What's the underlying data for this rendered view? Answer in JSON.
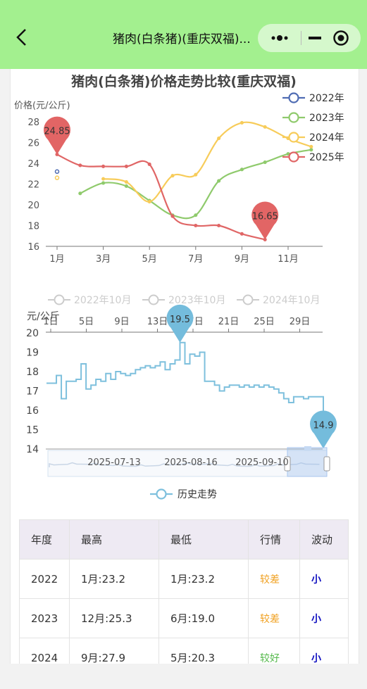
{
  "nav": {
    "title": "猪肉(白条猪)(重庆双福)..."
  },
  "chart1": {
    "title": "猪肉(白条猪)价格走势比较(重庆双福)",
    "ylabel": "价格(元/公斤)",
    "yticks": [
      "28",
      "26",
      "24",
      "22",
      "20",
      "18",
      "16"
    ],
    "xticks": [
      "1月",
      "3月",
      "5月",
      "7月",
      "9月",
      "11月"
    ],
    "legend": [
      "2022年",
      "2023年",
      "2024年",
      "2025年"
    ],
    "pin_max": "24.85",
    "pin_min": "16.65"
  },
  "chart2": {
    "legend_months": [
      "2022年10月",
      "2023年10月",
      "2024年10月"
    ],
    "ylabel": "元/公斤",
    "xticks": [
      "1日",
      "5日",
      "9日",
      "13日",
      "17日",
      "21日",
      "25日",
      "29日"
    ],
    "yticks": [
      "20",
      "19",
      "18",
      "17",
      "16",
      "15",
      "14"
    ],
    "pin_max": "19.5",
    "pin_min": "14.9",
    "zoom_labels": [
      "2025-07-13",
      "2025-08-16",
      "2025-09-10"
    ],
    "legend": "历史走势"
  },
  "chart_data": [
    {
      "type": "line",
      "title": "猪肉(白条猪)价格走势比较(重庆双福)",
      "ylabel": "价格(元/公斤)",
      "ylim": [
        16,
        28
      ],
      "categories": [
        "1月",
        "2月",
        "3月",
        "4月",
        "5月",
        "6月",
        "7月",
        "8月",
        "9月",
        "10月",
        "11月",
        "12月"
      ],
      "series": [
        {
          "name": "2022年",
          "color": "#4f6cb3",
          "values": [
            23.2,
            null,
            null,
            null,
            null,
            null,
            null,
            null,
            null,
            null,
            null,
            null
          ]
        },
        {
          "name": "2023年",
          "color": "#8fca6c",
          "values": [
            null,
            21.1,
            22.1,
            21.8,
            20.4,
            19.0,
            19.0,
            22.3,
            23.4,
            24.1,
            24.9,
            25.3
          ]
        },
        {
          "name": "2024年",
          "color": "#f7cc5a",
          "values": [
            22.6,
            null,
            22.5,
            22.2,
            20.3,
            22.8,
            22.9,
            26.4,
            27.9,
            27.5,
            26.4,
            25.6
          ]
        },
        {
          "name": "2025年",
          "color": "#e06666",
          "values": [
            24.85,
            23.8,
            23.7,
            23.7,
            23.9,
            18.9,
            18.0,
            18.0,
            17.2,
            16.65,
            null,
            null
          ]
        }
      ]
    },
    {
      "type": "line",
      "ylabel": "元/公斤",
      "ylim": [
        14,
        20
      ],
      "series": [
        {
          "name": "历史走势",
          "color": "#7ec0dd",
          "values": [
            17.4,
            17.4,
            17.8,
            16.6,
            17.5,
            17.5,
            17.6,
            18.4,
            17.1,
            17.3,
            17.6,
            17.5,
            17.9,
            17.6,
            18.0,
            17.9,
            17.8,
            17.9,
            18.1,
            18.2,
            18.3,
            18.2,
            18.3,
            18.5,
            18.1,
            18.4,
            18.6,
            19.5,
            18.4,
            18.9,
            18.8,
            19.0,
            17.5,
            17.5,
            17.3,
            17.0,
            17.2,
            17.3,
            17.3,
            17.2,
            17.3,
            17.2,
            17.3,
            17.2,
            17.3,
            17.2,
            17.1,
            16.9,
            16.6,
            16.4,
            16.7,
            16.7,
            16.6,
            16.7,
            16.7,
            16.7,
            14.9
          ]
        }
      ]
    }
  ],
  "table": {
    "headers": [
      "年度",
      "最高",
      "最低",
      "行情",
      "波动"
    ],
    "rows": [
      [
        "2022",
        "1月:23.2",
        "1月:23.2",
        "较差",
        "小"
      ],
      [
        "2023",
        "12月:25.3",
        "6月:19.0",
        "较差",
        "小"
      ],
      [
        "2024",
        "9月:27.9",
        "5月:20.3",
        "较好",
        "小"
      ]
    ],
    "colors": {
      "较差": "#f0a020",
      "较好": "#55b94c",
      "小": "#1010c0"
    }
  }
}
